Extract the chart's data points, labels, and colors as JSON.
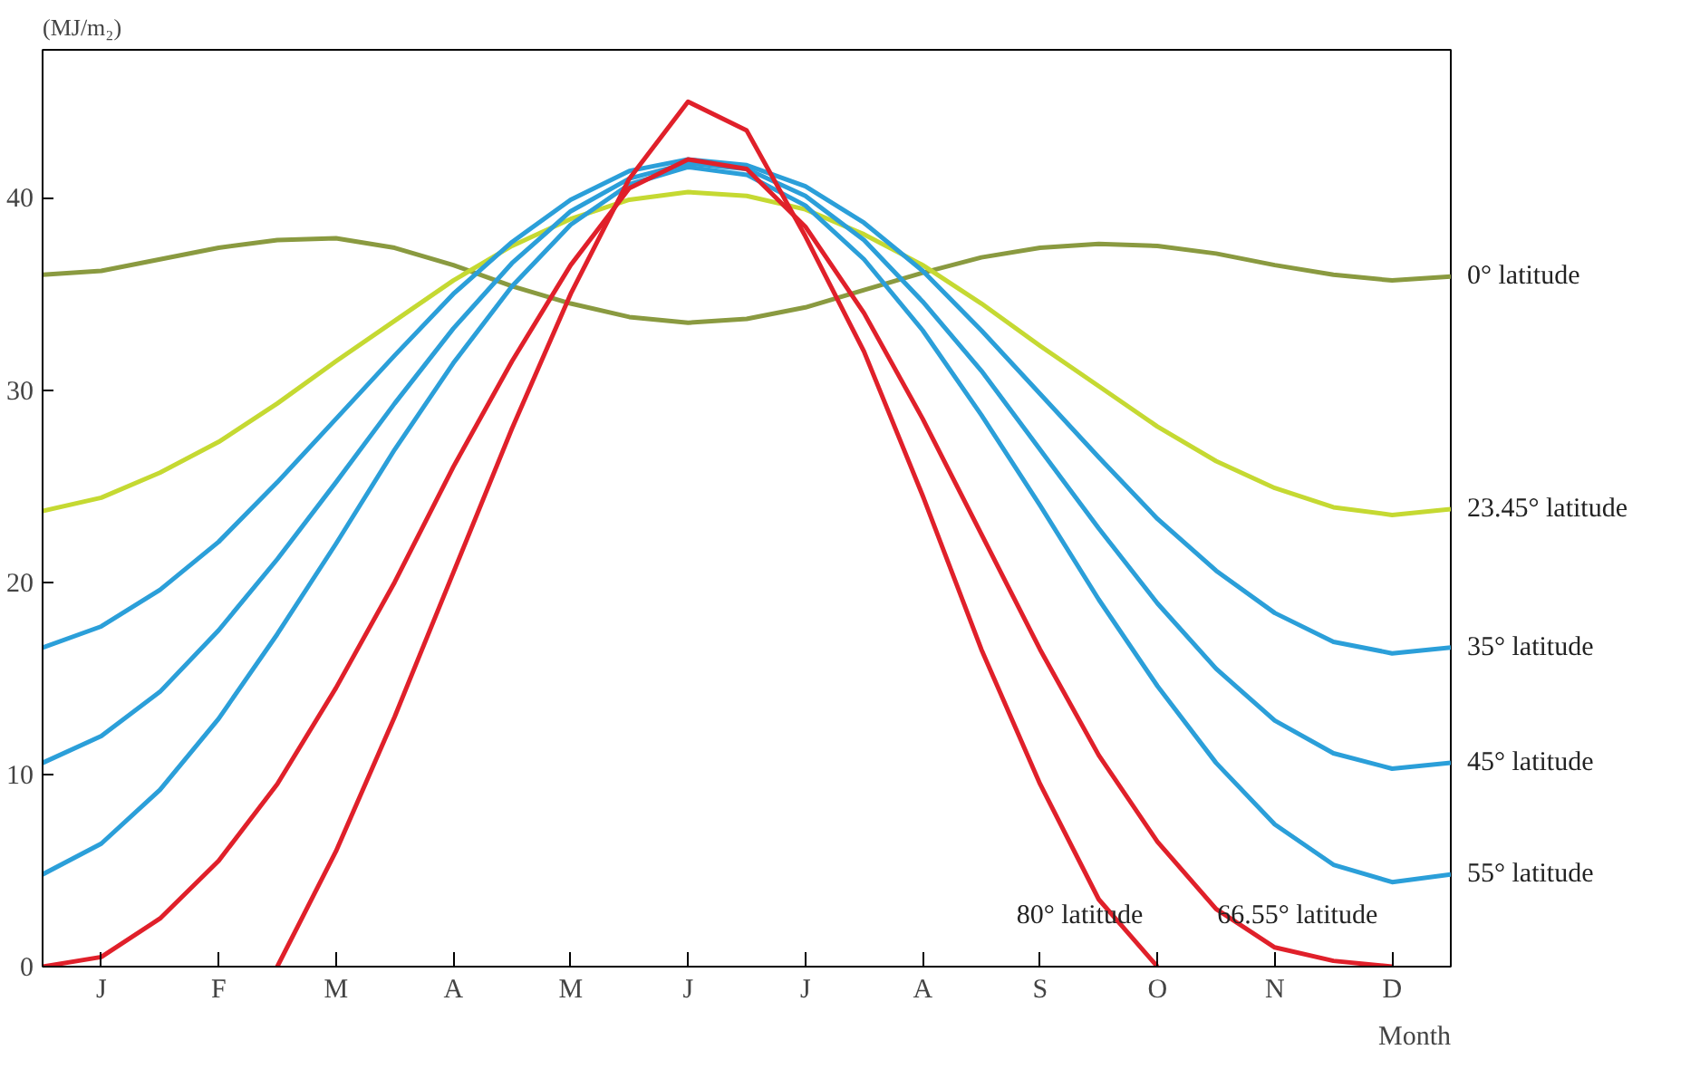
{
  "chart_data": {
    "type": "line",
    "ylabel": "(MJ/m₂)",
    "xlabel": "Month",
    "ylim": [
      0,
      47.7
    ],
    "yticks": [
      0,
      10,
      20,
      30,
      40
    ],
    "categories": [
      null,
      "J",
      null,
      "F",
      null,
      "M",
      null,
      "A",
      null,
      "M",
      null,
      "J",
      null,
      "J",
      null,
      "A",
      null,
      "S",
      null,
      "O",
      null,
      "N",
      null,
      "D",
      null
    ],
    "grid": false,
    "line_style": "solid",
    "series": [
      {
        "name": "0° latitude",
        "color": "#8a9a40",
        "values": [
          36.0,
          36.2,
          36.8,
          37.4,
          37.8,
          37.9,
          37.4,
          36.5,
          35.4,
          34.5,
          33.8,
          33.5,
          33.7,
          34.3,
          35.2,
          36.1,
          36.9,
          37.4,
          37.6,
          37.5,
          37.1,
          36.5,
          36.0,
          35.7,
          35.9
        ]
      },
      {
        "name": "23.45° latitude",
        "color": "#c5d932",
        "values": [
          23.7,
          24.4,
          25.7,
          27.3,
          29.3,
          31.5,
          33.6,
          35.7,
          37.5,
          38.9,
          39.9,
          40.3,
          40.1,
          39.4,
          38.1,
          36.5,
          34.5,
          32.3,
          30.2,
          28.1,
          26.3,
          24.9,
          23.9,
          23.5,
          23.8
        ]
      },
      {
        "name": "35° latitude",
        "color": "#2b9fd9",
        "values": [
          16.6,
          17.7,
          19.6,
          22.1,
          25.2,
          28.5,
          31.8,
          35.0,
          37.7,
          39.9,
          41.4,
          42.0,
          41.7,
          40.6,
          38.7,
          36.2,
          33.1,
          29.8,
          26.5,
          23.3,
          20.6,
          18.4,
          16.9,
          16.3,
          16.6
        ]
      },
      {
        "name": "45° latitude",
        "color": "#2b9fd9",
        "values": [
          10.6,
          12.0,
          14.3,
          17.5,
          21.2,
          25.2,
          29.3,
          33.2,
          36.6,
          39.3,
          41.0,
          41.8,
          41.5,
          40.1,
          37.8,
          34.6,
          31.0,
          26.9,
          22.8,
          18.9,
          15.5,
          12.8,
          11.1,
          10.3,
          10.6
        ]
      },
      {
        "name": "55° latitude",
        "color": "#2b9fd9",
        "values": [
          4.8,
          6.4,
          9.2,
          12.9,
          17.3,
          22.0,
          26.9,
          31.4,
          35.4,
          38.6,
          40.7,
          41.6,
          41.2,
          39.6,
          36.8,
          33.1,
          28.7,
          24.0,
          19.1,
          14.6,
          10.6,
          7.4,
          5.3,
          4.4,
          4.8
        ]
      },
      {
        "name": "80° latitude",
        "color": "#e0202a",
        "values": [
          null,
          null,
          null,
          null,
          0,
          6,
          13,
          20.5,
          28,
          35,
          41,
          45,
          43.5,
          38,
          32,
          24.5,
          16.5,
          9.5,
          3.5,
          0,
          null,
          null,
          null,
          null,
          null
        ]
      },
      {
        "name": "66.55° latitude",
        "color": "#e0202a",
        "values": [
          0,
          0.5,
          2.5,
          5.5,
          9.5,
          14.5,
          20,
          26,
          31.5,
          36.5,
          40.5,
          42,
          41.5,
          38.5,
          34,
          28.5,
          22.5,
          16.5,
          11,
          6.5,
          3,
          1,
          0.3,
          0,
          null
        ]
      }
    ]
  }
}
